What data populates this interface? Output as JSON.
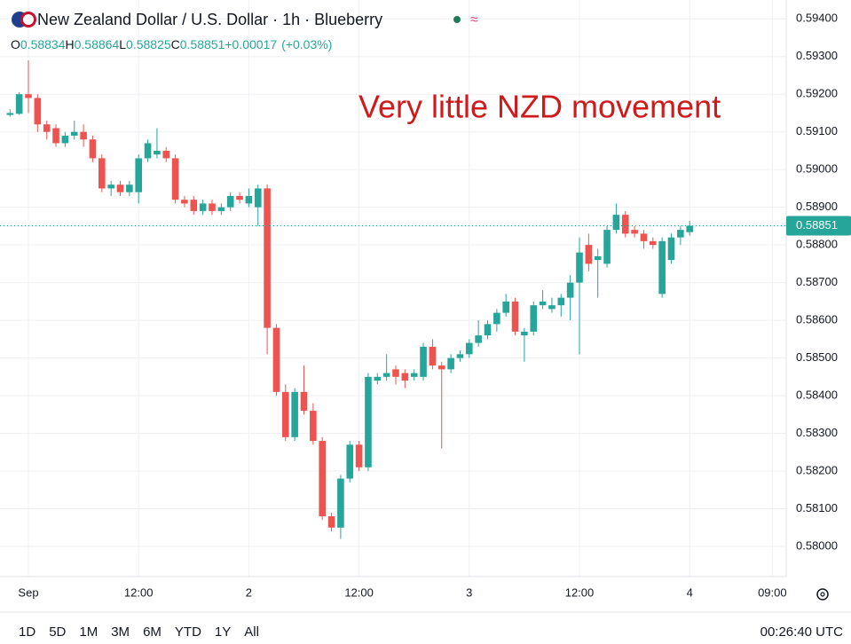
{
  "chart_data": {
    "type": "candlestick",
    "title": "New Zealand Dollar / U.S. Dollar · 1h · Blueberry",
    "ohlc_prefix": [
      "O",
      "H",
      "L",
      "C"
    ],
    "change": "+0.00017",
    "change_pct": "(+0.03%)",
    "annotation": "Very little NZD movement",
    "up_color": "#26a69a",
    "down_color": "#ef5350",
    "annotation_color": "#d0191b",
    "grid": true,
    "categories": [
      null,
      null,
      "Sep",
      null,
      null,
      null,
      null,
      null,
      null,
      null,
      null,
      null,
      null,
      null,
      "12:00",
      null,
      null,
      null,
      null,
      null,
      null,
      null,
      null,
      null,
      null,
      null,
      "2",
      null,
      null,
      null,
      null,
      null,
      null,
      null,
      null,
      null,
      null,
      null,
      "12:00",
      null,
      null,
      null,
      null,
      null,
      null,
      null,
      null,
      null,
      null,
      null,
      "3",
      null,
      null,
      null,
      null,
      null,
      null,
      null,
      null,
      null,
      null,
      null,
      "12:00",
      null,
      null,
      null,
      null,
      null,
      null,
      null,
      null,
      null,
      null,
      null,
      "4",
      null,
      null,
      null,
      null,
      null,
      null,
      null,
      null,
      "09:00"
    ],
    "open": [
      0.59145,
      0.59148,
      0.592,
      0.5919,
      0.5912,
      0.5911,
      0.5907,
      0.5909,
      0.591,
      0.5908,
      0.5903,
      0.5895,
      0.5896,
      0.5894,
      0.5894,
      0.5903,
      0.5904,
      0.5905,
      0.5903,
      0.5892,
      0.5892,
      0.5889,
      0.5891,
      0.5889,
      0.589,
      0.5893,
      0.5891,
      0.589,
      0.5895,
      0.5858,
      0.5841,
      0.5829,
      0.5841,
      0.5836,
      0.5828,
      0.5808,
      0.5805,
      0.5818,
      0.5827,
      0.5821,
      0.5844,
      0.5845,
      0.5847,
      0.5846,
      0.5845,
      0.5845,
      0.5853,
      0.5848,
      0.5847,
      0.585,
      0.5851,
      0.5854,
      0.5856,
      0.5859,
      0.5862,
      0.5865,
      0.5856,
      0.5857,
      0.5864,
      0.5863,
      0.5864,
      0.5866,
      0.587,
      0.588,
      0.5876,
      0.5875,
      0.5884,
      0.5888,
      0.5884,
      0.5883,
      0.5881,
      0.5867,
      0.5876,
      0.5882,
      0.58834,
      null,
      null,
      null,
      null,
      null,
      null,
      null,
      null,
      null
    ],
    "high": [
      0.5916,
      0.59205,
      0.5929,
      0.592,
      0.5913,
      0.5912,
      0.591,
      0.5913,
      0.5912,
      0.5909,
      0.5904,
      0.5897,
      0.5897,
      0.5897,
      0.5904,
      0.5908,
      0.5911,
      0.5906,
      0.5904,
      0.5893,
      0.5893,
      0.5892,
      0.5892,
      0.5891,
      0.5894,
      0.5894,
      0.5895,
      0.5896,
      0.5896,
      0.5859,
      0.5843,
      0.5842,
      0.5848,
      0.5838,
      0.5829,
      0.5809,
      0.5819,
      0.5828,
      0.5828,
      0.5846,
      0.5846,
      0.5851,
      0.5848,
      0.5847,
      0.5847,
      0.5854,
      0.5855,
      0.5849,
      0.5851,
      0.5852,
      0.5855,
      0.586,
      0.586,
      0.5863,
      0.5867,
      0.5866,
      0.5858,
      0.5865,
      0.5868,
      0.5866,
      0.5867,
      0.5872,
      0.5882,
      0.5883,
      0.5879,
      0.5885,
      0.5891,
      0.5889,
      0.5885,
      0.5884,
      0.5882,
      0.5882,
      0.5883,
      0.5885,
      0.58864,
      null,
      null,
      null,
      null,
      null,
      null,
      null,
      null,
      null
    ],
    "low": [
      0.5914,
      0.59145,
      0.5915,
      0.591,
      0.5908,
      0.5906,
      0.5906,
      0.5908,
      0.5906,
      0.5902,
      0.5894,
      0.5893,
      0.5893,
      0.5893,
      0.5891,
      0.5902,
      0.5903,
      0.5902,
      0.5891,
      0.589,
      0.5888,
      0.5888,
      0.5888,
      0.5888,
      0.5889,
      0.5891,
      0.589,
      0.5885,
      0.5851,
      0.584,
      0.5828,
      0.5828,
      0.5835,
      0.5827,
      0.5807,
      0.5804,
      0.5802,
      0.5817,
      0.582,
      0.582,
      0.5843,
      0.5844,
      0.5843,
      0.5842,
      0.5844,
      0.5844,
      0.5847,
      0.5826,
      0.5846,
      0.5849,
      0.585,
      0.5853,
      0.5855,
      0.5857,
      0.5861,
      0.5856,
      0.5849,
      0.5856,
      0.5863,
      0.5862,
      0.5861,
      0.586,
      0.5851,
      0.5873,
      0.5866,
      0.5874,
      0.5883,
      0.5882,
      0.5882,
      0.5879,
      0.5879,
      0.5866,
      0.5875,
      0.588,
      0.58825,
      null,
      null,
      null,
      null,
      null,
      null,
      null,
      null,
      null
    ],
    "close": [
      0.5915,
      0.592,
      0.5919,
      0.5912,
      0.591,
      0.5907,
      0.5909,
      0.591,
      0.5908,
      0.5903,
      0.5895,
      0.5896,
      0.5894,
      0.5896,
      0.5903,
      0.5907,
      0.5905,
      0.5903,
      0.5892,
      0.5891,
      0.5889,
      0.5891,
      0.5889,
      0.589,
      0.5893,
      0.5892,
      0.5893,
      0.5895,
      0.5858,
      0.5841,
      0.5829,
      0.5841,
      0.5836,
      0.5828,
      0.5808,
      0.5805,
      0.5818,
      0.5827,
      0.5821,
      0.5845,
      0.5845,
      0.5846,
      0.5845,
      0.5844,
      0.5846,
      0.5853,
      0.5848,
      0.5847,
      0.585,
      0.5851,
      0.5854,
      0.5856,
      0.5859,
      0.5862,
      0.5865,
      0.5857,
      0.5857,
      0.5864,
      0.5865,
      0.5864,
      0.5866,
      0.587,
      0.5878,
      0.5875,
      0.5877,
      0.5884,
      0.5888,
      0.5883,
      0.5883,
      0.5881,
      0.588,
      0.5881,
      0.5882,
      0.5884,
      0.58851,
      null,
      null,
      null,
      null,
      null,
      null,
      null,
      null,
      null
    ],
    "ylim": [
      0.5792,
      0.5945
    ],
    "yticks": [
      {
        "value": 0.58,
        "label": "0.58000"
      },
      {
        "value": 0.581,
        "label": "0.58100"
      },
      {
        "value": 0.582,
        "label": "0.58200"
      },
      {
        "value": 0.583,
        "label": "0.58300"
      },
      {
        "value": 0.584,
        "label": "0.58400"
      },
      {
        "value": 0.585,
        "label": "0.58500"
      },
      {
        "value": 0.586,
        "label": "0.58600"
      },
      {
        "value": 0.587,
        "label": "0.58700"
      },
      {
        "value": 0.588,
        "label": "0.58800"
      },
      {
        "value": 0.589,
        "label": "0.58900"
      },
      {
        "value": 0.59,
        "label": "0.59000"
      },
      {
        "value": 0.591,
        "label": "0.59100"
      },
      {
        "value": 0.592,
        "label": "0.59200"
      },
      {
        "value": 0.593,
        "label": "0.59300"
      },
      {
        "value": 0.594,
        "label": "0.59400"
      }
    ],
    "ranges": [
      "1D",
      "5D",
      "1M",
      "3M",
      "6M",
      "YTD",
      "1Y",
      "All"
    ],
    "clock": "00:26:40 UTC"
  }
}
